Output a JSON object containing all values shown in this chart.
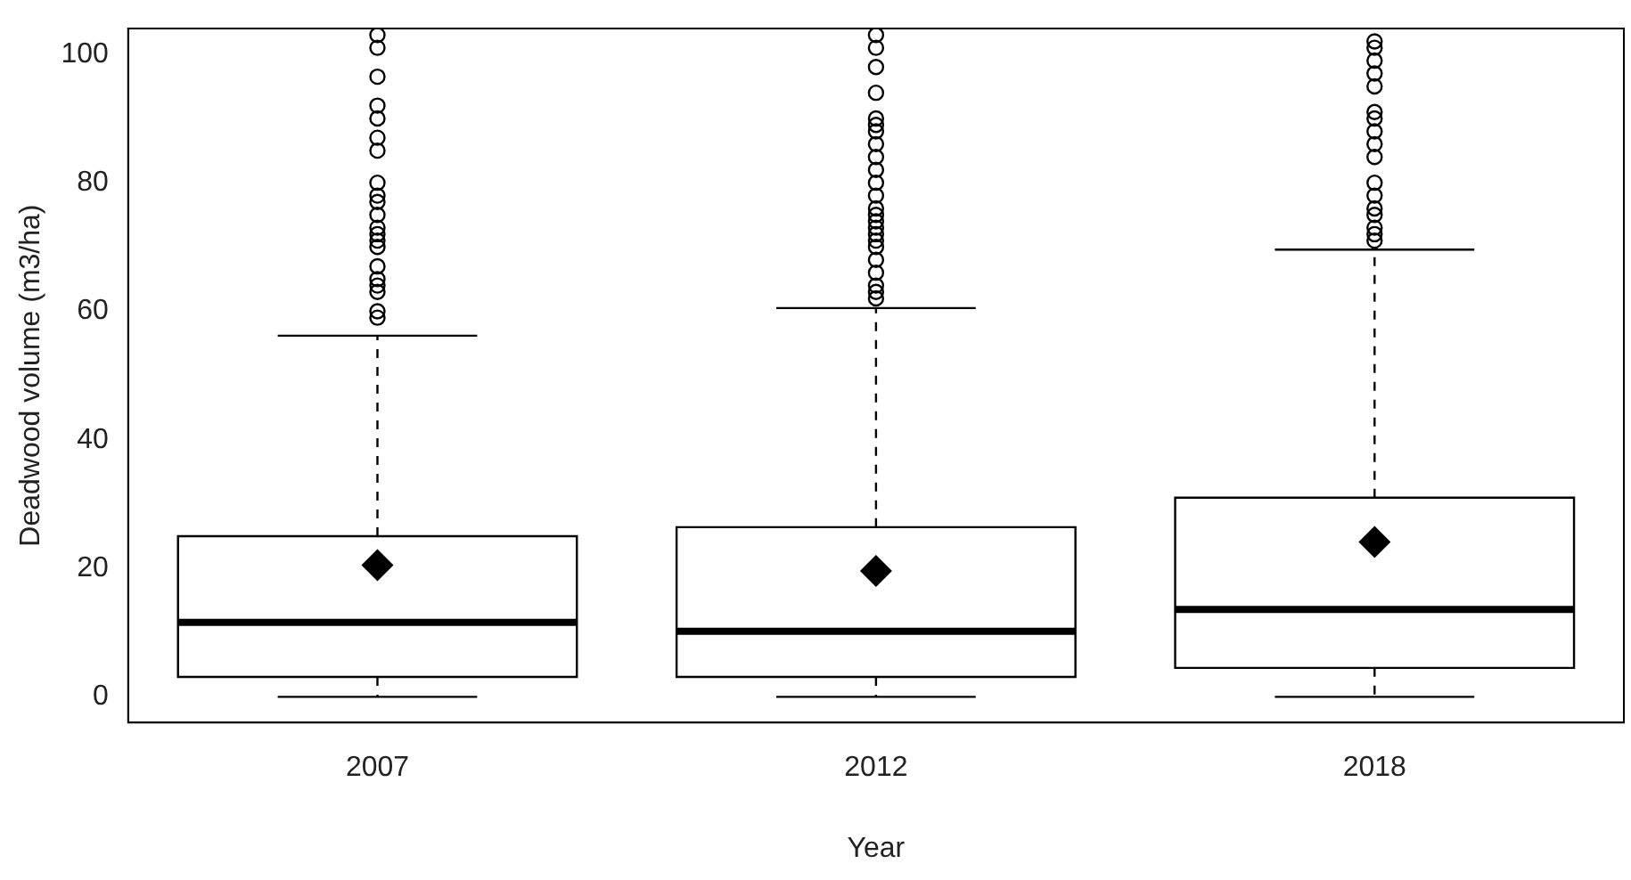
{
  "chart_data": {
    "type": "box",
    "xlabel": "Year",
    "ylabel": "Deadwood volume (m3/ha)",
    "categories": [
      "2007",
      "2012",
      "2018"
    ],
    "ylim": [
      -4,
      104
    ],
    "yticks": [
      0,
      20,
      40,
      60,
      80,
      100
    ],
    "grid": false,
    "legend": false,
    "marker": "circle",
    "boxes": [
      {
        "low": 0,
        "q1": 3.1,
        "median": 11.6,
        "q3": 25,
        "high": 56.2,
        "mean": 20.5,
        "outliers": [
          103,
          101,
          96.5,
          92,
          90,
          87,
          85,
          80,
          78,
          77,
          75,
          73,
          72,
          71,
          70,
          67,
          65,
          64,
          63,
          60,
          59
        ]
      },
      {
        "low": 0,
        "q1": 3.1,
        "median": 10.2,
        "q3": 26.4,
        "high": 60.5,
        "mean": 19.6,
        "outliers": [
          103,
          101,
          98,
          94,
          90,
          89,
          88,
          86,
          84,
          82,
          80,
          78,
          76,
          75,
          74,
          73,
          72,
          71,
          70,
          68,
          66,
          64,
          63,
          62
        ]
      },
      {
        "low": 0,
        "q1": 4.5,
        "median": 13.6,
        "q3": 31,
        "high": 69.6,
        "mean": 24.1,
        "outliers": [
          102,
          101,
          99,
          97,
          95,
          91,
          90,
          88,
          86,
          84,
          80,
          78,
          76,
          75,
          73,
          72,
          71
        ]
      }
    ]
  }
}
